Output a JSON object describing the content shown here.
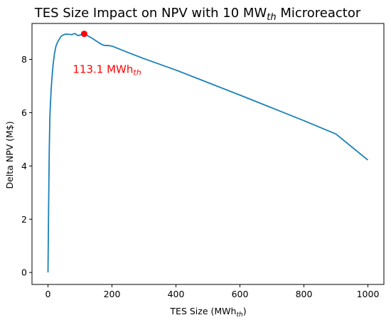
{
  "chart_data": {
    "type": "line",
    "title": {
      "prefix": "TES Size Impact on NPV with 10 MW",
      "subscript": "th",
      "suffix": " Microreactor"
    },
    "xlabel": {
      "prefix": "TES Size (MWh",
      "subscript": "th",
      "suffix": ")"
    },
    "ylabel": "Delta NPV (M$)",
    "xlim": [
      -50,
      1050
    ],
    "ylim": [
      -0.45,
      9.35
    ],
    "xticks": [
      0,
      200,
      400,
      600,
      800,
      1000
    ],
    "yticks": [
      0,
      2,
      4,
      6,
      8
    ],
    "grid": false,
    "line_color": "#1a80bb",
    "series": [
      {
        "x": [
          0,
          2,
          4,
          6,
          8,
          10,
          13,
          16,
          20,
          25,
          30,
          35,
          40,
          45,
          50,
          55,
          60,
          65,
          70,
          75,
          80,
          85,
          90,
          95,
          100,
          105,
          110,
          113.1,
          120,
          125,
          130,
          140,
          150,
          160,
          170,
          180,
          190,
          200,
          250,
          300,
          400,
          500,
          600,
          700,
          800,
          900,
          1000
        ],
        "y": [
          0.0,
          2.5,
          4.6,
          5.9,
          6.4,
          6.9,
          7.4,
          7.8,
          8.2,
          8.5,
          8.65,
          8.75,
          8.85,
          8.9,
          8.93,
          8.95,
          8.95,
          8.94,
          8.94,
          8.93,
          8.96,
          8.97,
          8.92,
          8.89,
          8.92,
          8.93,
          8.95,
          8.96,
          8.92,
          8.88,
          8.85,
          8.78,
          8.7,
          8.62,
          8.55,
          8.52,
          8.52,
          8.5,
          8.26,
          8.03,
          7.6,
          7.13,
          6.66,
          6.18,
          5.7,
          5.2,
          4.22
        ]
      }
    ],
    "highlight": {
      "x": 113.1,
      "y": 8.96,
      "color": "#ff0000"
    },
    "annotation": {
      "prefix": "113.1 MWh",
      "subscript": "th",
      "color": "#ff0000"
    }
  }
}
